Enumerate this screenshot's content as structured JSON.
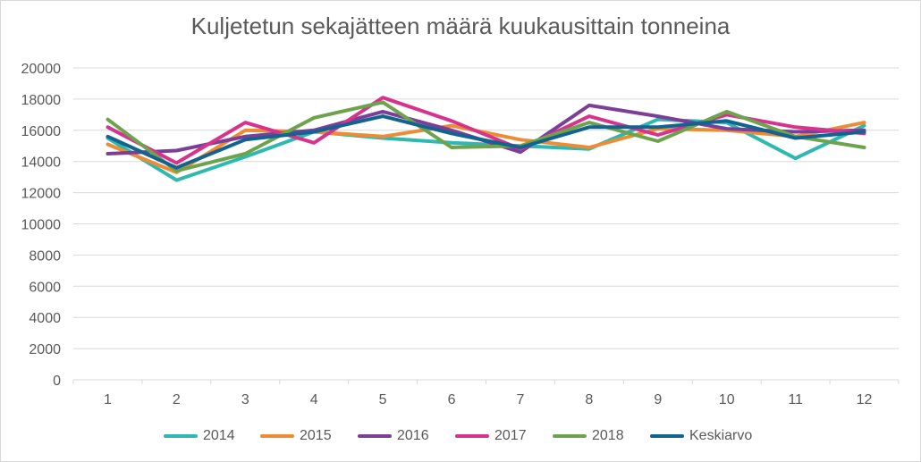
{
  "chart_data": {
    "type": "line",
    "title": "Kuljetetun sekajätteen määrä kuukausittain tonneina",
    "xlabel": "",
    "ylabel": "",
    "categories": [
      "1",
      "2",
      "3",
      "4",
      "5",
      "6",
      "7",
      "8",
      "9",
      "10",
      "11",
      "12"
    ],
    "ylim": [
      0,
      20000
    ],
    "yticks": [
      "0",
      "2000",
      "4000",
      "6000",
      "8000",
      "10000",
      "12000",
      "14000",
      "16000",
      "18000",
      "20000"
    ],
    "grid": "horizontal",
    "legend_position": "bottom",
    "series": [
      {
        "name": "2014",
        "color": "#2fb8b0",
        "values": [
          15500,
          12800,
          14300,
          15900,
          15500,
          15200,
          15000,
          14800,
          16700,
          16500,
          14200,
          16300
        ]
      },
      {
        "name": "2015",
        "color": "#ee8c34",
        "values": [
          15100,
          13300,
          16000,
          15900,
          15600,
          16300,
          15400,
          14900,
          16100,
          16000,
          15600,
          16500
        ]
      },
      {
        "name": "2016",
        "color": "#7b3f98",
        "values": [
          14500,
          14700,
          15600,
          16000,
          17200,
          16000,
          14600,
          17600,
          16900,
          16100,
          15900,
          16000
        ]
      },
      {
        "name": "2017",
        "color": "#d6338d",
        "values": [
          16200,
          13900,
          16500,
          15200,
          18100,
          16600,
          14800,
          16900,
          15700,
          17000,
          16200,
          15800
        ]
      },
      {
        "name": "2018",
        "color": "#6ea34e",
        "values": [
          16700,
          13400,
          14500,
          16800,
          17800,
          14900,
          15000,
          16500,
          15300,
          17200,
          15600,
          14900
        ]
      },
      {
        "name": "Keskiarvo",
        "color": "#12638f",
        "values": [
          15600,
          13600,
          15400,
          15900,
          16900,
          15800,
          14900,
          16200,
          16200,
          16600,
          15500,
          15900
        ]
      }
    ]
  }
}
